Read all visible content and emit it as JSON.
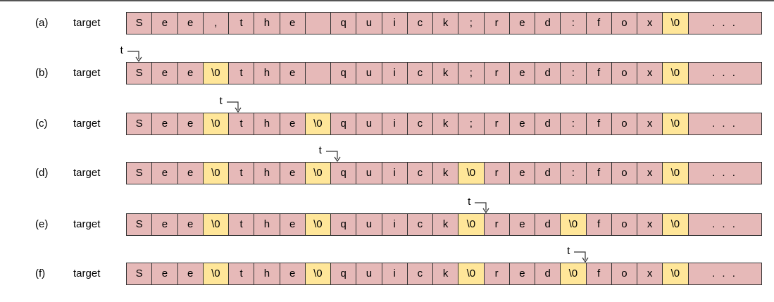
{
  "diagram": {
    "array_name": "target",
    "pointer_label": "t",
    "tail_label": ". . .",
    "colors": {
      "char_cell": "#e6b9b8",
      "null_cell": "#ffe699",
      "border": "#333333"
    },
    "steps": [
      {
        "label": "(a)",
        "pointer": null,
        "cells": [
          "S",
          "e",
          "e",
          ",",
          "t",
          "h",
          "e",
          "",
          "q",
          "u",
          "i",
          "c",
          "k",
          ";",
          "r",
          "e",
          "d",
          ":",
          "f",
          "o",
          "x",
          "\\0"
        ]
      },
      {
        "label": "(b)",
        "pointer": 0,
        "cells": [
          "S",
          "e",
          "e",
          "\\0",
          "t",
          "h",
          "e",
          "",
          "q",
          "u",
          "i",
          "c",
          "k",
          ";",
          "r",
          "e",
          "d",
          ":",
          "f",
          "o",
          "x",
          "\\0"
        ]
      },
      {
        "label": "(c)",
        "pointer": 4,
        "cells": [
          "S",
          "e",
          "e",
          "\\0",
          "t",
          "h",
          "e",
          "\\0",
          "q",
          "u",
          "i",
          "c",
          "k",
          ";",
          "r",
          "e",
          "d",
          ":",
          "f",
          "o",
          "x",
          "\\0"
        ]
      },
      {
        "label": "(d)",
        "pointer": 8,
        "cells": [
          "S",
          "e",
          "e",
          "\\0",
          "t",
          "h",
          "e",
          "\\0",
          "q",
          "u",
          "i",
          "c",
          "k",
          "\\0",
          "r",
          "e",
          "d",
          ":",
          "f",
          "o",
          "x",
          "\\0"
        ]
      },
      {
        "label": "(e)",
        "pointer": 14,
        "cells": [
          "S",
          "e",
          "e",
          "\\0",
          "t",
          "h",
          "e",
          "\\0",
          "q",
          "u",
          "i",
          "c",
          "k",
          "\\0",
          "r",
          "e",
          "d",
          "\\0",
          "f",
          "o",
          "x",
          "\\0"
        ]
      },
      {
        "label": "(f)",
        "pointer": 18,
        "cells": [
          "S",
          "e",
          "e",
          "\\0",
          "t",
          "h",
          "e",
          "\\0",
          "q",
          "u",
          "i",
          "c",
          "k",
          "\\0",
          "r",
          "e",
          "d",
          "\\0",
          "f",
          "o",
          "x",
          "\\0"
        ]
      }
    ]
  }
}
